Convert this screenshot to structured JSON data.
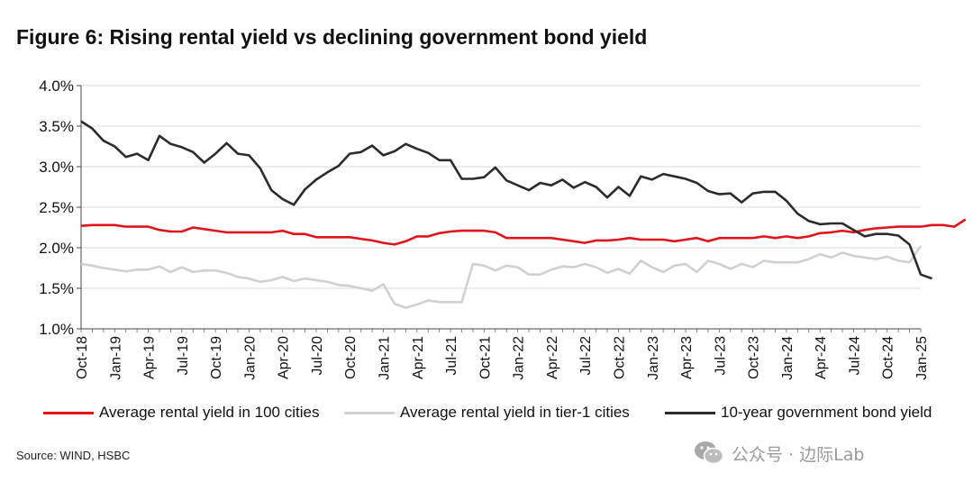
{
  "title": "Figure 6: Rising rental yield vs declining government bond yield",
  "source": "Source: WIND, HSBC",
  "watermark": "公众号 · 边际Lab",
  "chart_data": {
    "type": "line",
    "ylim": [
      1.0,
      4.0
    ],
    "y_ticks": [
      1.0,
      1.5,
      2.0,
      2.5,
      3.0,
      3.5,
      4.0
    ],
    "y_tick_labels": [
      "1.0%",
      "1.5%",
      "2.0%",
      "2.5%",
      "3.0%",
      "3.5%",
      "4.0%"
    ],
    "x_start": "Oct-18",
    "x_tick_labels": [
      "Oct-18",
      "Jan-19",
      "Apr-19",
      "Jul-19",
      "Oct-19",
      "Jan-20",
      "Apr-20",
      "Jul-20",
      "Oct-20",
      "Jan-21",
      "Apr-21",
      "Jul-21",
      "Oct-21",
      "Jan-22",
      "Apr-22",
      "Jul-22",
      "Oct-22",
      "Jan-23",
      "Apr-23",
      "Jul-23",
      "Oct-23",
      "Jan-24",
      "Apr-24",
      "Jul-24",
      "Oct-24",
      "Jan-25"
    ],
    "grid": "horizontal",
    "legend_position": "bottom",
    "series": [
      {
        "name": "Average rental yield in 100 cities",
        "color": "#e0151b",
        "values": [
          2.27,
          2.28,
          2.28,
          2.28,
          2.26,
          2.26,
          2.26,
          2.22,
          2.2,
          2.2,
          2.25,
          2.23,
          2.21,
          2.19,
          2.19,
          2.19,
          2.19,
          2.19,
          2.21,
          2.17,
          2.17,
          2.13,
          2.13,
          2.13,
          2.13,
          2.11,
          2.09,
          2.06,
          2.04,
          2.08,
          2.14,
          2.14,
          2.18,
          2.2,
          2.21,
          2.21,
          2.21,
          2.19,
          2.12,
          2.12,
          2.12,
          2.12,
          2.12,
          2.1,
          2.08,
          2.06,
          2.09,
          2.09,
          2.1,
          2.12,
          2.1,
          2.1,
          2.1,
          2.08,
          2.1,
          2.12,
          2.08,
          2.12,
          2.12,
          2.12,
          2.12,
          2.14,
          2.12,
          2.14,
          2.12,
          2.14,
          2.18,
          2.19,
          2.21,
          2.19,
          2.22,
          2.24,
          2.25,
          2.26,
          2.26,
          2.26,
          2.28,
          2.28,
          2.26,
          2.35
        ]
      },
      {
        "name": "Average rental yield in tier-1 cities",
        "color": "#d0d0d0",
        "values": [
          1.8,
          1.78,
          1.75,
          1.73,
          1.71,
          1.73,
          1.73,
          1.77,
          1.7,
          1.76,
          1.7,
          1.72,
          1.72,
          1.69,
          1.64,
          1.62,
          1.58,
          1.6,
          1.64,
          1.59,
          1.62,
          1.6,
          1.58,
          1.54,
          1.53,
          1.5,
          1.47,
          1.55,
          1.31,
          1.26,
          1.3,
          1.35,
          1.33,
          1.33,
          1.33,
          1.8,
          1.78,
          1.72,
          1.78,
          1.76,
          1.67,
          1.67,
          1.73,
          1.77,
          1.76,
          1.8,
          1.76,
          1.69,
          1.74,
          1.68,
          1.84,
          1.76,
          1.7,
          1.78,
          1.8,
          1.7,
          1.84,
          1.8,
          1.74,
          1.8,
          1.76,
          1.84,
          1.82,
          1.82,
          1.82,
          1.86,
          1.92,
          1.88,
          1.94,
          1.9,
          1.88,
          1.86,
          1.89,
          1.84,
          1.82,
          2.02
        ]
      },
      {
        "name": "10-year government bond yield",
        "color": "#2b2b2b",
        "values": [
          3.56,
          3.47,
          3.32,
          3.25,
          3.12,
          3.16,
          3.08,
          3.38,
          3.28,
          3.24,
          3.18,
          3.05,
          3.16,
          3.29,
          3.16,
          3.14,
          2.98,
          2.71,
          2.6,
          2.53,
          2.72,
          2.84,
          2.93,
          3.01,
          3.16,
          3.18,
          3.26,
          3.14,
          3.19,
          3.28,
          3.22,
          3.17,
          3.08,
          3.08,
          2.85,
          2.85,
          2.87,
          2.99,
          2.83,
          2.77,
          2.71,
          2.8,
          2.77,
          2.84,
          2.74,
          2.81,
          2.75,
          2.62,
          2.75,
          2.64,
          2.88,
          2.84,
          2.91,
          2.88,
          2.85,
          2.8,
          2.7,
          2.66,
          2.67,
          2.56,
          2.67,
          2.69,
          2.69,
          2.58,
          2.42,
          2.33,
          2.29,
          2.3,
          2.3,
          2.22,
          2.14,
          2.17,
          2.17,
          2.15,
          2.04,
          1.67,
          1.62
        ]
      }
    ]
  }
}
